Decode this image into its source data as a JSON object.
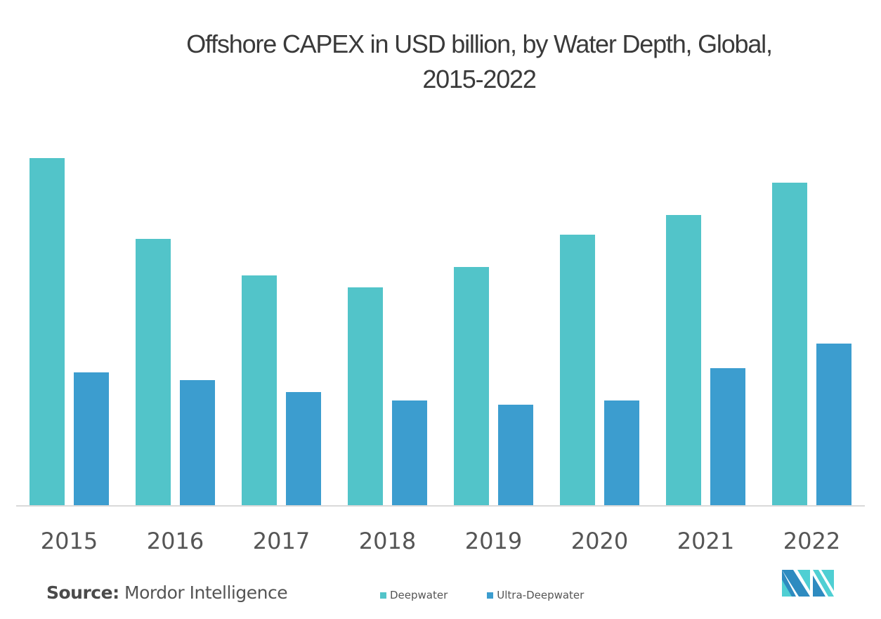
{
  "chart_data": {
    "type": "bar",
    "title": "Offshore CAPEX in USD billion, by Water Depth, Global, 2015-2022",
    "title_lines": [
      "Offshore CAPEX in USD billion, by Water Depth, Global,",
      "2015-2022"
    ],
    "xlabel": "",
    "ylabel": "",
    "y_axis_note": "no y-axis ticks shown; values are estimated relative magnitudes",
    "categories": [
      "2015",
      "2016",
      "2017",
      "2018",
      "2019",
      "2020",
      "2021",
      "2022"
    ],
    "series": [
      {
        "name": "Deepwater",
        "color": "#52c4c9",
        "values": [
          49.4,
          37.9,
          32.7,
          31.0,
          33.9,
          38.5,
          41.3,
          45.9
        ]
      },
      {
        "name": "Ultra-Deepwater",
        "color": "#3c9dcf",
        "values": [
          18.9,
          17.8,
          16.1,
          14.9,
          14.3,
          14.9,
          19.5,
          23.0
        ]
      }
    ],
    "ylim": [
      0,
      50
    ],
    "grid": false,
    "legend_position": "bottom-center"
  },
  "source": {
    "label": "Source:",
    "value": "Mordor Intelligence"
  },
  "legend": [
    {
      "label": "Deepwater",
      "color": "#52c4c9"
    },
    {
      "label": "Ultra-Deepwater",
      "color": "#3c9dcf"
    }
  ],
  "logo": {
    "name": "mordor-intelligence-logo",
    "colors": [
      "#2e8bc0",
      "#4fcfd3"
    ]
  },
  "axis_color": "#d9d9d9"
}
